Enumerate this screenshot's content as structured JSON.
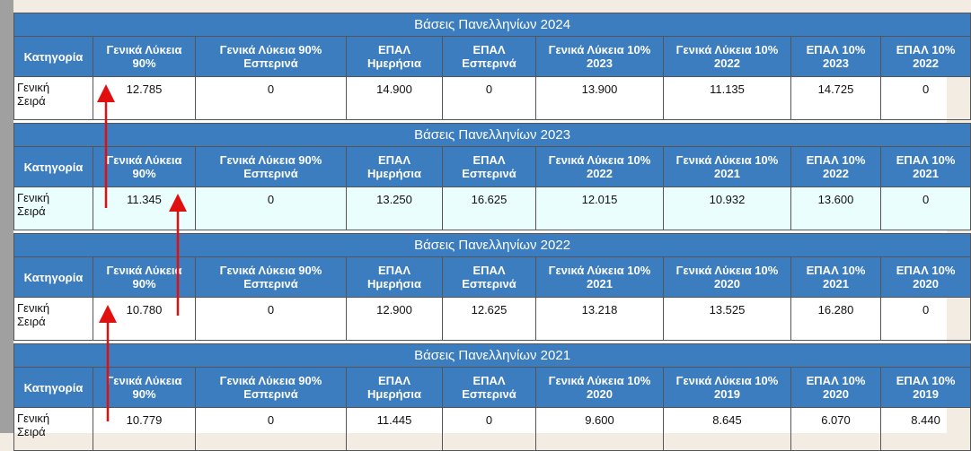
{
  "tables": [
    {
      "title": "Βάσεις Πανελληνίων 2024",
      "headers": [
        [
          "Κατηγορία"
        ],
        [
          "Γενικά Λύκεια",
          "90%"
        ],
        [
          "Γενικά Λύκεια 90%",
          "Εσπερινά"
        ],
        [
          "ΕΠΑΛ",
          "Ημερήσια"
        ],
        [
          "ΕΠΑΛ",
          "Εσπερινά"
        ],
        [
          "Γενικά Λύκεια 10%",
          "2023"
        ],
        [
          "Γενικά Λύκεια 10%",
          "2022"
        ],
        [
          "ΕΠΑΛ 10%",
          "2023"
        ],
        [
          "ΕΠΑΛ 10%",
          "2022"
        ]
      ],
      "rows": [
        [
          [
            "Γενική",
            "Σειρά"
          ],
          "12.785",
          "0",
          "14.900",
          "0",
          "13.900",
          "11.135",
          "14.725",
          "0"
        ]
      ]
    },
    {
      "title": "Βάσεις Πανελληνίων 2023",
      "headers": [
        [
          "Κατηγορία"
        ],
        [
          "Γενικά Λύκεια",
          "90%"
        ],
        [
          "Γενικά Λύκεια 90%",
          "Εσπερινά"
        ],
        [
          "ΕΠΑΛ",
          "Ημερήσια"
        ],
        [
          "ΕΠΑΛ",
          "Εσπερινά"
        ],
        [
          "Γενικά Λύκεια 10%",
          "2022"
        ],
        [
          "Γενικά Λύκεια 10%",
          "2021"
        ],
        [
          "ΕΠΑΛ 10%",
          "2022"
        ],
        [
          "ΕΠΑΛ 10%",
          "2021"
        ]
      ],
      "rows": [
        [
          [
            "Γενική",
            "Σειρά"
          ],
          "11.345",
          "0",
          "13.250",
          "16.625",
          "12.015",
          "10.932",
          "13.600",
          "0"
        ]
      ]
    },
    {
      "title": "Βάσεις Πανελληνίων 2022",
      "headers": [
        [
          "Κατηγορία"
        ],
        [
          "Γενικά Λύκεια",
          "90%"
        ],
        [
          "Γενικά Λύκεια 90%",
          "Εσπερινά"
        ],
        [
          "ΕΠΑΛ",
          "Ημερήσια"
        ],
        [
          "ΕΠΑΛ",
          "Εσπερινά"
        ],
        [
          "Γενικά Λύκεια 10%",
          "2021"
        ],
        [
          "Γενικά Λύκεια 10%",
          "2020"
        ],
        [
          "ΕΠΑΛ 10%",
          "2021"
        ],
        [
          "ΕΠΑΛ 10%",
          "2020"
        ]
      ],
      "rows": [
        [
          [
            "Γενική",
            "Σειρά"
          ],
          "10.780",
          "0",
          "12.900",
          "12.625",
          "13.218",
          "13.525",
          "16.280",
          "0"
        ]
      ]
    },
    {
      "title": "Βάσεις Πανελληνίων 2021",
      "headers": [
        [
          "Κατηγορία"
        ],
        [
          "Γενικά Λύκεια",
          "90%"
        ],
        [
          "Γενικά Λύκεια 90%",
          "Εσπερινά"
        ],
        [
          "ΕΠΑΛ",
          "Ημερήσια"
        ],
        [
          "ΕΠΑΛ",
          "Εσπερινά"
        ],
        [
          "Γενικά Λύκεια 10%",
          "2020"
        ],
        [
          "Γενικά Λύκεια 10%",
          "2019"
        ],
        [
          "ΕΠΑΛ 10%",
          "2020"
        ],
        [
          "ΕΠΑΛ 10%",
          "2019"
        ]
      ],
      "rows": [
        [
          [
            "Γενική",
            "Σειρά"
          ],
          "10.779",
          "0",
          "11.445",
          "0",
          "9.600",
          "8.645",
          "6.070",
          "8.440"
        ]
      ]
    }
  ]
}
